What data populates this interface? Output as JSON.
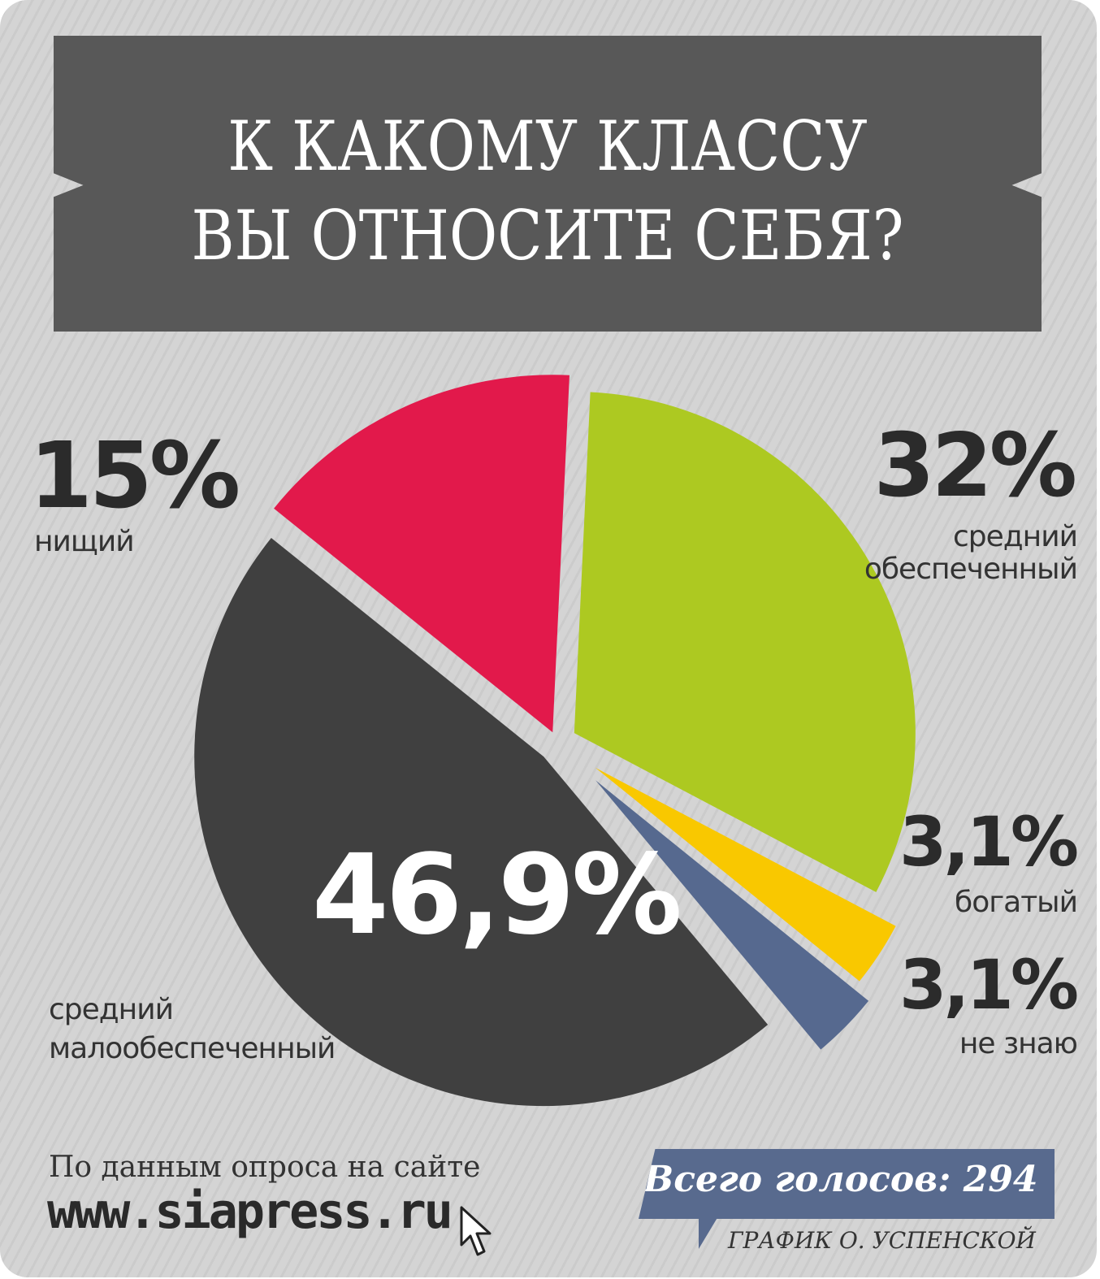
{
  "title": {
    "line1": "К КАКОМУ КЛАССУ",
    "line2": "ВЫ ОТНОСИТЕ СЕБЯ?"
  },
  "chart_data": {
    "type": "pie",
    "title": "К КАКОМУ КЛАССУ ВЫ ОТНОСИТЕ СЕБЯ?",
    "legend": "none",
    "slices": [
      {
        "label": "средний обеспеченный",
        "label_lines": [
          "средний",
          "обеспеченный"
        ],
        "value": 32,
        "value_label": "32%",
        "color": "#adc921"
      },
      {
        "label": "богатый",
        "label_lines": [
          "богатый"
        ],
        "value": 3.1,
        "value_label": "3,1%",
        "color": "#f9c800"
      },
      {
        "label": "не знаю",
        "label_lines": [
          "не знаю"
        ],
        "value": 3.1,
        "value_label": "3,1%",
        "color": "#56698f"
      },
      {
        "label": "средний малообеспеченный",
        "label_lines": [
          "средний",
          "малообеспеченный"
        ],
        "value": 46.9,
        "value_label": "46,9%",
        "color": "#404040"
      },
      {
        "label": "нищий",
        "label_lines": [
          "нищий"
        ],
        "value": 15,
        "value_label": "15%",
        "color": "#e2194b"
      }
    ]
  },
  "footer": {
    "source_text": "По данным опроса на сайте",
    "source_url": "www.siapress.ru",
    "votes_label": "Всего голосов: 294",
    "credit": "ГРАФИК О. УСПЕНСКОЙ"
  },
  "colors": {
    "background": "#d4d4d4",
    "banner": "#585858",
    "votes_box": "#586a8e"
  },
  "icons": {
    "cursor": "mouse-pointer-icon"
  }
}
